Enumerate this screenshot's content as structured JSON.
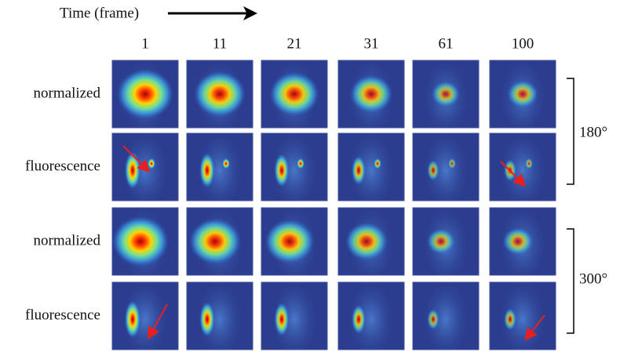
{
  "header": {
    "title": "Time (frame)"
  },
  "columns": [
    "1",
    "11",
    "21",
    "31",
    "61",
    "100"
  ],
  "rows": [
    {
      "label": "normalized"
    },
    {
      "label": "fluorescence"
    },
    {
      "label": "normalized"
    },
    {
      "label": "fluorescence"
    }
  ],
  "groups": [
    {
      "label": "180°"
    },
    {
      "label": "300°"
    }
  ]
}
